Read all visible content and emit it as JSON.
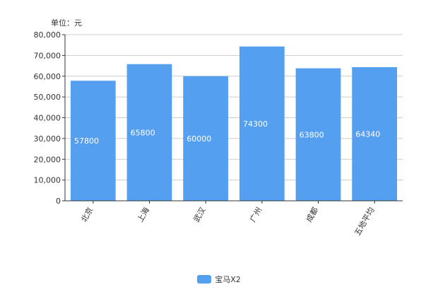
{
  "chart_data": {
    "type": "bar",
    "unit_label": "单位：元",
    "categories": [
      "北京",
      "上海",
      "武汉",
      "广州",
      "成都",
      "五地平均"
    ],
    "series": [
      {
        "name": "宝马X2",
        "values": [
          57800,
          65800,
          60000,
          74300,
          63800,
          64340
        ],
        "color": "#559ff0"
      }
    ],
    "y_ticks": [
      "0",
      "10,000",
      "20,000",
      "30,000",
      "40,000",
      "50,000",
      "60,000",
      "70,000",
      "80,000"
    ],
    "ylim": [
      0,
      80000
    ],
    "grid": true,
    "legend_position": "bottom-center",
    "label_color": "#ffffff",
    "grid_color": "#cccccc",
    "axis_color": "#333333"
  }
}
